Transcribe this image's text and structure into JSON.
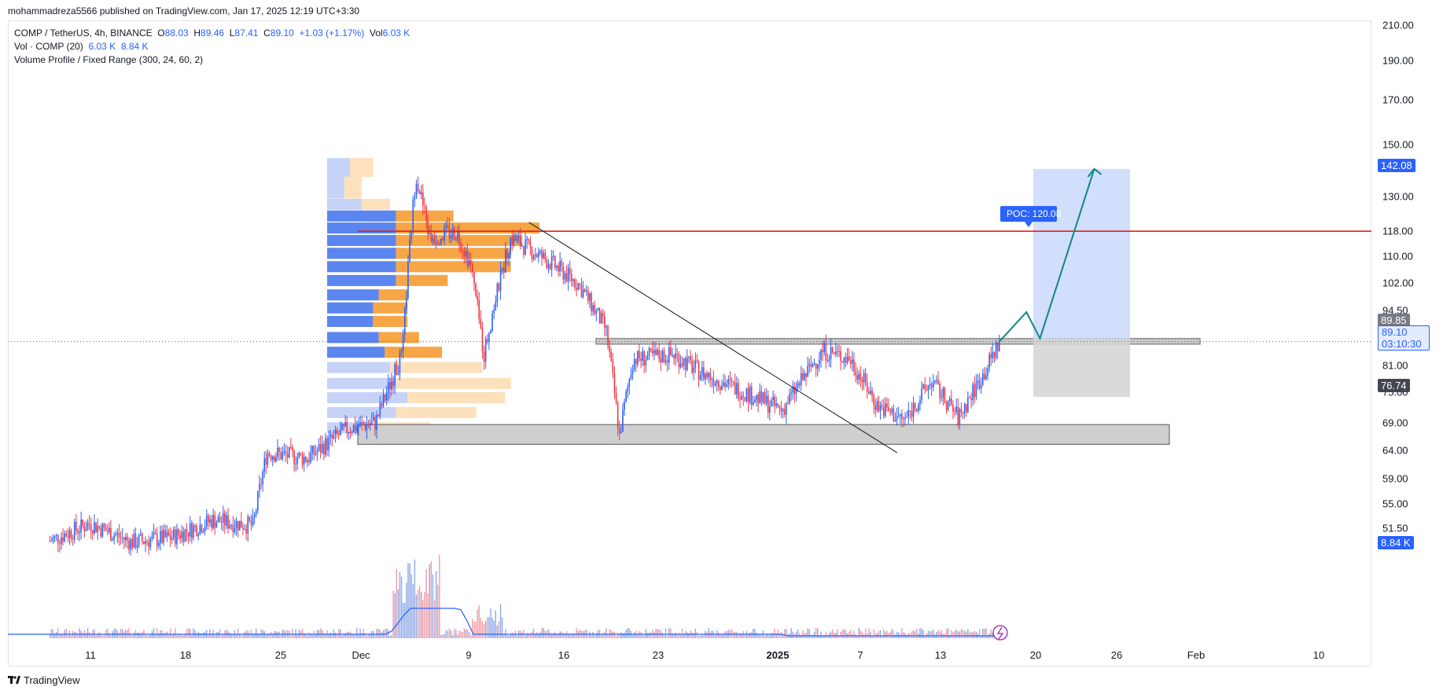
{
  "header": {
    "publisher": "mohammadreza5566 published on TradingView.com, Jan 17, 2025 12:19 UTC+3:30"
  },
  "legend": {
    "symbol": "COMP / TetherUS, 4h, BINANCE",
    "open_label": "O",
    "open": "88.03",
    "high_label": "H",
    "high": "89.46",
    "low_label": "L",
    "low": "87.41",
    "close_label": "C",
    "close": "89.10",
    "change": "+1.03 (+1.17%)",
    "vol_label": "Vol",
    "vol": "6.03 K",
    "vol_ind_label": "Vol · COMP (20)",
    "vol_ind_v1": "6.03 K",
    "vol_ind_v2": "8.84 K",
    "vp_label": "Volume Profile / Fixed Range (300, 24, 60, 2)"
  },
  "price_axis": {
    "ticks": [
      "210.00",
      "190.00",
      "170.00",
      "150.00",
      "130.00",
      "118.00",
      "110.00",
      "102.00",
      "94.50",
      "81.00",
      "75.00",
      "69.00",
      "64.00",
      "59.00",
      "55.00",
      "51.50"
    ],
    "tags": {
      "target": "142.08",
      "upper_box": "89.85",
      "last_price": "89.10",
      "countdown": "03:10:30",
      "stop": "76.74",
      "vol_ma": "8.84 K"
    }
  },
  "time_axis": {
    "ticks": [
      "11",
      "18",
      "25",
      "Dec",
      "9",
      "16",
      "23",
      "2025",
      "7",
      "13",
      "20",
      "26",
      "Feb",
      "10"
    ]
  },
  "annotations": {
    "poc": "POC: 120.08"
  },
  "footer": {
    "brand": "TradingView"
  },
  "colors": {
    "up": "#2962ff",
    "down": "#f23645",
    "poc_line": "#e5201d",
    "vp_up": "#5b86f0",
    "vp_down": "#f7a646",
    "arrow": "#12877c",
    "target_zone": "#c9d8fb",
    "stop_zone": "#d6d6d6"
  },
  "chart_data": {
    "type": "candlestick",
    "title": "COMP / TetherUS, 4h, BINANCE",
    "scale": "log",
    "ylim": [
      49,
      215
    ],
    "x_labels": [
      "11",
      "18",
      "25",
      "Dec",
      "9",
      "16",
      "23",
      "2025",
      "7",
      "13",
      "20",
      "26",
      "Feb",
      "10"
    ],
    "price_path": [
      {
        "date": "2024-11-08",
        "price": 52.0
      },
      {
        "date": "2024-11-11",
        "price": 54.5
      },
      {
        "date": "2024-11-14",
        "price": 51.8
      },
      {
        "date": "2024-11-17",
        "price": 52.5
      },
      {
        "date": "2024-11-20",
        "price": 55.0
      },
      {
        "date": "2024-11-23",
        "price": 54.2
      },
      {
        "date": "2024-11-24",
        "price": 66.0
      },
      {
        "date": "2024-11-27",
        "price": 65.0
      },
      {
        "date": "2024-11-30",
        "price": 70.5
      },
      {
        "date": "2024-12-02",
        "price": 71.5
      },
      {
        "date": "2024-12-04",
        "price": 86.0
      },
      {
        "date": "2024-12-05",
        "price": 140.0
      },
      {
        "date": "2024-12-06",
        "price": 118.0
      },
      {
        "date": "2024-12-08",
        "price": 120.0
      },
      {
        "date": "2024-12-09",
        "price": 110.0
      },
      {
        "date": "2024-12-10",
        "price": 86.0
      },
      {
        "date": "2024-12-12",
        "price": 118.0
      },
      {
        "date": "2024-12-15",
        "price": 110.0
      },
      {
        "date": "2024-12-17",
        "price": 104.0
      },
      {
        "date": "2024-12-19",
        "price": 92.0
      },
      {
        "date": "2024-12-20",
        "price": 69.0
      },
      {
        "date": "2024-12-21",
        "price": 85.0
      },
      {
        "date": "2024-12-24",
        "price": 86.0
      },
      {
        "date": "2024-12-26",
        "price": 82.0
      },
      {
        "date": "2024-12-29",
        "price": 78.0
      },
      {
        "date": "2025-01-01",
        "price": 74.0
      },
      {
        "date": "2025-01-04",
        "price": 87.0
      },
      {
        "date": "2025-01-06",
        "price": 85.0
      },
      {
        "date": "2025-01-08",
        "price": 75.0
      },
      {
        "date": "2025-01-10",
        "price": 72.0
      },
      {
        "date": "2025-01-12",
        "price": 80.0
      },
      {
        "date": "2025-01-14",
        "price": 72.5
      },
      {
        "date": "2025-01-16",
        "price": 82.5
      },
      {
        "date": "2025-01-17",
        "price": 89.1
      }
    ],
    "horizontal_levels": [
      {
        "label": "POC",
        "value": 120.08
      }
    ],
    "zones": [
      {
        "name": "resistance",
        "from": 88.5,
        "to": 89.85
      },
      {
        "name": "support",
        "from": 67.5,
        "to": 71.2
      },
      {
        "name": "target",
        "from": 89.85,
        "to": 142.08
      },
      {
        "name": "stop",
        "from": 76.74,
        "to": 89.85
      }
    ],
    "projection": [
      {
        "date": "2025-01-17",
        "price": 89.1
      },
      {
        "date": "2025-01-19",
        "price": 96.5
      },
      {
        "date": "2025-01-20",
        "price": 89.85
      },
      {
        "date": "2025-01-24",
        "price": 142.08
      }
    ],
    "trendline": [
      {
        "date": "2024-12-11",
        "price": 123.0
      },
      {
        "date": "2025-01-09",
        "price": 66.0
      }
    ],
    "volume_profile": {
      "price_bins": [
        144,
        141,
        137,
        133,
        129,
        125,
        121,
        117,
        113,
        109,
        105,
        101,
        97.5,
        94,
        90,
        86.5,
        83,
        79.5,
        76.5,
        73.5,
        70.5
      ],
      "up": [
        4,
        4,
        3,
        3,
        6,
        12,
        12,
        12,
        12,
        12,
        12,
        9,
        8,
        8,
        9,
        10,
        11,
        12,
        14,
        12,
        8
      ],
      "down": [
        4,
        4,
        3,
        3,
        5,
        10,
        25,
        22,
        20,
        20,
        9,
        5,
        6,
        6,
        7,
        10,
        16,
        20,
        17,
        14,
        10
      ]
    }
  }
}
